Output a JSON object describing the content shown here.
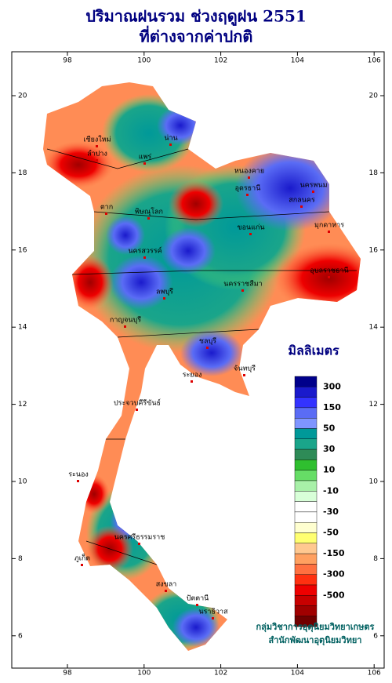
{
  "header": {
    "title_lines": [
      "ปริมาณฝนรวม ช่วงฤดูฝน 2551",
      "ที่ต่างจากค่าปกติ"
    ]
  },
  "axes": {
    "lon_ticks": [
      98,
      100,
      102,
      104,
      106
    ],
    "lat_ticks": [
      20,
      18,
      16,
      14,
      12,
      10,
      8,
      6
    ]
  },
  "legend": {
    "title": "มิลลิเมตร",
    "colors": [
      "#00008b",
      "#1a1acc",
      "#3333ff",
      "#5a6cf5",
      "#7f95ff",
      "#009999",
      "#1aa58a",
      "#2e8b57",
      "#2fbf2f",
      "#66dd66",
      "#a8f0a8",
      "#d8ffd8",
      "#ffffff",
      "#ffffff",
      "#ffffd0",
      "#ffff70",
      "#ffc890",
      "#ffa060",
      "#ff7040",
      "#ff3010",
      "#ee0000",
      "#c80000",
      "#a00000",
      "#700000"
    ],
    "labels": [
      300,
      150,
      50,
      30,
      10,
      -10,
      -30,
      -50,
      -150,
      -300,
      -500
    ]
  },
  "places": [
    "เชียงใหม่",
    "ลำปาง",
    "น่าน",
    "แพร่",
    "ตาก",
    "พิษณุโลก",
    "หนองคาย",
    "อุดรธานี",
    "นครพนม",
    "สกลนคร",
    "มุกดาหาร",
    "ขอนแก่น",
    "นครสวรรค์",
    "นครราชสีมา",
    "อุบลราชธานี",
    "ลพบุรี",
    "กาญจนบุรี",
    "ชลบุรี",
    "จันทบุรี",
    "ระยอง",
    "ประจวบคีรีขันธ์",
    "ระนอง",
    "นครศรีธรรมราช",
    "ภูเก็ต",
    "สงขลา",
    "ปัตตานี",
    "นราธิวาส"
  ],
  "footer": {
    "lines": [
      "กลุ่มวิชาการอุตุนิยมวิทยาเกษตร",
      "สำนักพัฒนาอุตุนิยมวิทยา"
    ]
  }
}
